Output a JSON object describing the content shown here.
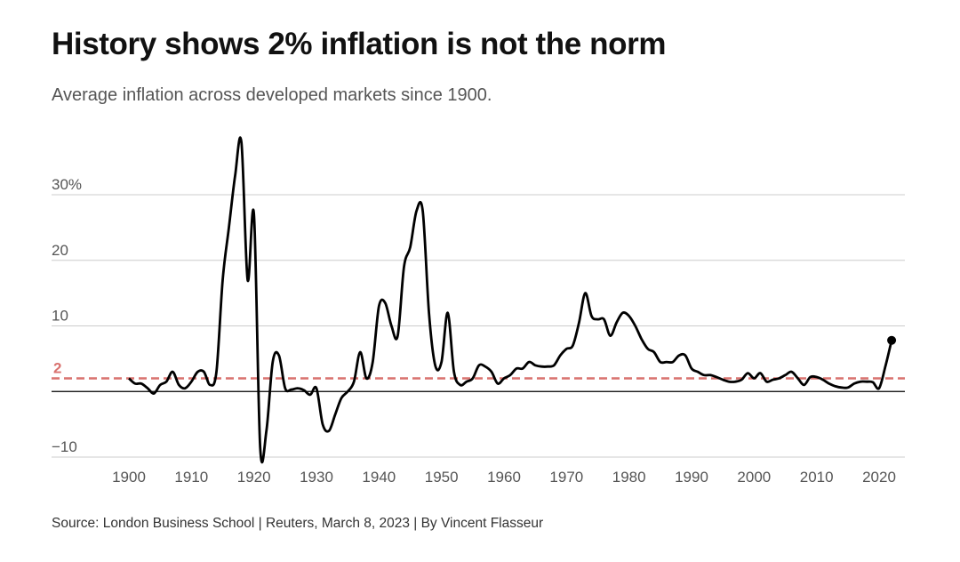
{
  "header": {
    "title": "History shows 2% inflation is not the norm",
    "subtitle": "Average inflation across developed markets since 1900."
  },
  "footer": {
    "source": "Source: London Business School | Reuters, March 8, 2023 | By Vincent Flasseur"
  },
  "colors": {
    "line": "#000000",
    "reference": "#d9726f",
    "grid": "#cccccc",
    "zero_line": "#000000"
  },
  "chart_data": {
    "type": "line",
    "title": "History shows 2% inflation is not the norm",
    "subtitle": "Average inflation across developed markets since 1900.",
    "xlabel": "",
    "ylabel": "",
    "xlim": [
      1900,
      2022
    ],
    "ylim": [
      -10,
      30
    ],
    "grid": true,
    "x_ticks": [
      1900,
      1910,
      1920,
      1930,
      1940,
      1950,
      1960,
      1970,
      1980,
      1990,
      2000,
      2010,
      2020
    ],
    "x_tick_labels": [
      "1900",
      "1910",
      "1920",
      "1930",
      "1940",
      "1950",
      "1960",
      "1970",
      "1980",
      "1990",
      "2000",
      "2010",
      "2020"
    ],
    "y_ticks": [
      -10,
      10,
      20,
      30
    ],
    "y_tick_labels": [
      "−10",
      "10",
      "20",
      "30%"
    ],
    "reference_line": {
      "value": 2,
      "label": "2"
    },
    "series": [
      {
        "x": [
          1900,
          1901,
          1902,
          1903,
          1904,
          1905,
          1906,
          1907,
          1908,
          1909,
          1910,
          1911,
          1912,
          1913,
          1914,
          1915,
          1916,
          1917,
          1918,
          1919,
          1920,
          1921,
          1922,
          1923,
          1924,
          1925,
          1926,
          1927,
          1928,
          1929,
          1930,
          1931,
          1932,
          1933,
          1934,
          1935,
          1936,
          1937,
          1938,
          1939,
          1940,
          1941,
          1942,
          1943,
          1944,
          1945,
          1946,
          1947,
          1948,
          1949,
          1950,
          1951,
          1952,
          1953,
          1954,
          1955,
          1956,
          1957,
          1958,
          1959,
          1960,
          1961,
          1962,
          1963,
          1964,
          1965,
          1966,
          1967,
          1968,
          1969,
          1970,
          1971,
          1972,
          1973,
          1974,
          1975,
          1976,
          1977,
          1978,
          1979,
          1980,
          1981,
          1982,
          1983,
          1984,
          1985,
          1986,
          1987,
          1988,
          1989,
          1990,
          1991,
          1992,
          1993,
          1994,
          1995,
          1996,
          1997,
          1998,
          1999,
          2000,
          2001,
          2002,
          2003,
          2004,
          2005,
          2006,
          2007,
          2008,
          2009,
          2010,
          2011,
          2012,
          2013,
          2014,
          2015,
          2016,
          2017,
          2018,
          2019,
          2020,
          2021,
          2022
        ],
        "values": [
          2.0,
          1.2,
          1.2,
          0.5,
          -0.3,
          1.0,
          1.5,
          3.0,
          1.0,
          0.5,
          1.5,
          3.0,
          3.0,
          1.0,
          3.0,
          17.0,
          25.0,
          33.0,
          38.0,
          17.0,
          27.0,
          -8.5,
          -6.0,
          4.5,
          5.5,
          0.5,
          0.3,
          0.5,
          0.2,
          -0.5,
          0.5,
          -5.0,
          -6.0,
          -3.5,
          -1.0,
          0.0,
          1.5,
          6.0,
          2.0,
          4.5,
          13.0,
          13.5,
          10.0,
          8.5,
          19.0,
          22.0,
          27.5,
          27.5,
          12.0,
          4.0,
          4.5,
          12.0,
          3.0,
          1.0,
          1.5,
          2.0,
          4.0,
          3.8,
          3.0,
          1.2,
          2.0,
          2.5,
          3.5,
          3.5,
          4.5,
          4.0,
          3.8,
          3.8,
          4.0,
          5.5,
          6.5,
          7.0,
          10.5,
          15.0,
          11.5,
          11.0,
          11.0,
          8.5,
          10.5,
          12.0,
          11.5,
          10.0,
          8.0,
          6.5,
          6.0,
          4.5,
          4.5,
          4.5,
          5.5,
          5.5,
          3.5,
          3.0,
          2.5,
          2.5,
          2.2,
          1.8,
          1.5,
          1.5,
          1.8,
          2.8,
          2.0,
          2.8,
          1.5,
          1.8,
          2.0,
          2.5,
          3.0,
          2.0,
          1.0,
          2.2,
          2.2,
          1.8,
          1.2,
          0.8,
          0.6,
          0.6,
          1.2,
          1.5,
          1.5,
          1.4,
          0.5,
          3.8,
          7.8
        ]
      }
    ]
  }
}
